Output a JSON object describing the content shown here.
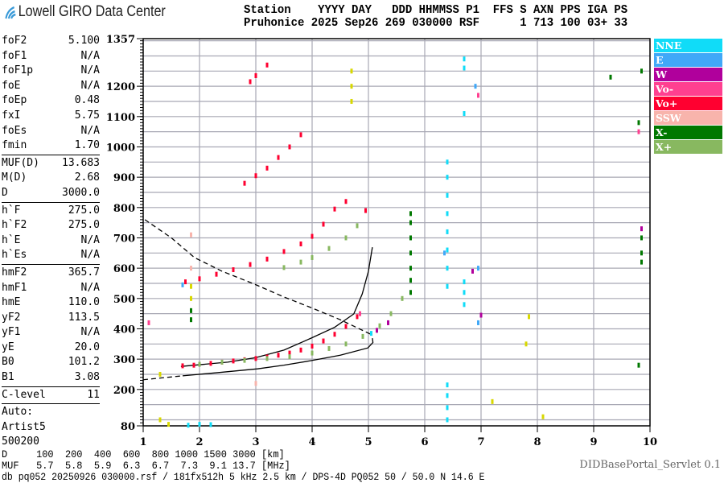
{
  "header": {
    "logo_text": "Lowell GIRO Data Center",
    "line1": "Station    YYYY DAY   DDD HHMMSS P1  FFS S AXN PPS IGA PS",
    "line2": "Pruhonice 2025 Sep26 269 030000 RSF      1 713 100 03+ 33"
  },
  "params": {
    "groups": [
      [
        [
          "foF2",
          "5.100"
        ],
        [
          "foF1",
          "N/A"
        ],
        [
          "foF1p",
          "N/A"
        ],
        [
          "foE",
          "N/A"
        ],
        [
          "foEp",
          "0.48"
        ],
        [
          "fxI",
          "5.75"
        ],
        [
          "foEs",
          "N/A"
        ],
        [
          "fmin",
          "1.70"
        ]
      ],
      [
        [
          "MUF(D)",
          "13.683"
        ],
        [
          "M(D)",
          "2.68"
        ],
        [
          "D",
          "3000.0"
        ]
      ],
      [
        [
          "h`F",
          "275.0"
        ],
        [
          "h`F2",
          "275.0"
        ],
        [
          "h`E",
          "N/A"
        ],
        [
          "h`Es",
          "N/A"
        ]
      ],
      [
        [
          "hmF2",
          "365.7"
        ],
        [
          "hmF1",
          "N/A"
        ],
        [
          "hmE",
          "110.0"
        ],
        [
          "yF2",
          "113.5"
        ],
        [
          "yF1",
          "N/A"
        ],
        [
          "yE",
          "20.0"
        ],
        [
          "B0",
          "101.2"
        ],
        [
          "B1",
          "3.08"
        ]
      ],
      [
        [
          "C-level",
          "11"
        ]
      ]
    ],
    "autoscale": [
      "Auto:",
      "Artist5",
      "500200"
    ]
  },
  "legend": [
    {
      "label": "NNE",
      "color": "#10dcf8"
    },
    {
      "label": "E",
      "color": "#40a8f8"
    },
    {
      "label": "W",
      "color": "#b0009c"
    },
    {
      "label": "Vo-",
      "color": "#ff4090"
    },
    {
      "label": "Vo+",
      "color": "#ff0030"
    },
    {
      "label": "SSW",
      "color": "#f8b4ac"
    },
    {
      "label": "X-",
      "color": "#007800"
    },
    {
      "label": "X+",
      "color": "#88b860"
    }
  ],
  "footer": {
    "d_row": "D     100  200  400  600  800 1000 1500 3000 [km]",
    "muf_row": "MUF   5.7  5.8  5.9  6.3  6.7  7.3  9.1 13.7 [MHz]",
    "info": "db pq052 20250926 030000.rsf / 181fx512h 5 kHz 2.5 km / DPS-4D PQ052 50 / 50.0 N 14.6 E",
    "servlet": "DIDBasePortal_Servlet 0.1"
  },
  "chart_data": {
    "type": "scatter",
    "xlim": [
      1,
      10
    ],
    "ylim": [
      80,
      1357
    ],
    "x_ticks": [
      "1",
      "2",
      "3",
      "4",
      "5",
      "6",
      "7",
      "8",
      "9",
      "10"
    ],
    "y_ticks": [
      "1357",
      "1200",
      "1100",
      "1000",
      "900",
      "800",
      "700",
      "600",
      "500",
      "400",
      "300",
      "200",
      "80"
    ],
    "grid": true,
    "legend_placement": "right",
    "points": [
      {
        "s": "Vo+",
        "pts": [
          [
            1.7,
            278
          ],
          [
            1.9,
            280
          ],
          [
            2.0,
            283
          ],
          [
            2.2,
            286
          ],
          [
            2.4,
            290
          ],
          [
            2.6,
            294
          ],
          [
            2.8,
            298
          ],
          [
            3.0,
            302
          ],
          [
            3.2,
            307
          ],
          [
            3.4,
            313
          ],
          [
            3.6,
            320
          ],
          [
            3.8,
            330
          ],
          [
            4.0,
            343
          ],
          [
            4.2,
            360
          ],
          [
            4.4,
            382
          ],
          [
            4.6,
            408
          ],
          [
            4.8,
            440
          ],
          [
            1.75,
            555
          ],
          [
            2.0,
            565
          ],
          [
            2.3,
            580
          ],
          [
            2.6,
            595
          ],
          [
            2.9,
            612
          ],
          [
            3.2,
            630
          ],
          [
            3.5,
            655
          ],
          [
            3.8,
            680
          ],
          [
            4.0,
            705
          ],
          [
            4.2,
            745
          ],
          [
            4.4,
            795
          ],
          [
            4.6,
            820
          ],
          [
            4.95,
            790
          ],
          [
            2.8,
            880
          ],
          [
            3.0,
            905
          ],
          [
            3.2,
            930
          ],
          [
            3.4,
            965
          ],
          [
            3.6,
            1000
          ],
          [
            3.8,
            1040
          ],
          [
            2.9,
            1215
          ],
          [
            3.0,
            1235
          ],
          [
            3.2,
            1270
          ]
        ]
      },
      {
        "s": "X+",
        "pts": [
          [
            2.0,
            283
          ],
          [
            2.4,
            290
          ],
          [
            2.8,
            296
          ],
          [
            3.2,
            302
          ],
          [
            3.6,
            308
          ],
          [
            4.0,
            320
          ],
          [
            4.3,
            335
          ],
          [
            4.6,
            350
          ],
          [
            4.9,
            375
          ],
          [
            5.2,
            410
          ],
          [
            5.4,
            450
          ],
          [
            5.6,
            500
          ],
          [
            3.5,
            602
          ],
          [
            3.8,
            620
          ],
          [
            4.0,
            635
          ],
          [
            4.3,
            665
          ],
          [
            4.6,
            700
          ],
          [
            4.8,
            740
          ]
        ]
      },
      {
        "s": "X-",
        "pts": [
          [
            5.75,
            520
          ],
          [
            5.75,
            560
          ],
          [
            5.75,
            600
          ],
          [
            5.75,
            650
          ],
          [
            5.75,
            700
          ],
          [
            5.75,
            750
          ],
          [
            5.75,
            780
          ],
          [
            1.85,
            430
          ],
          [
            1.85,
            460
          ],
          [
            9.3,
            1230
          ],
          [
            9.85,
            1250
          ],
          [
            9.85,
            700
          ],
          [
            9.85,
            650
          ],
          [
            9.85,
            620
          ],
          [
            9.8,
            280
          ],
          [
            9.8,
            1080
          ]
        ]
      },
      {
        "s": "NNE",
        "pts": [
          [
            6.4,
            540
          ],
          [
            6.4,
            600
          ],
          [
            6.4,
            660
          ],
          [
            6.4,
            720
          ],
          [
            6.4,
            780
          ],
          [
            6.4,
            840
          ],
          [
            6.4,
            900
          ],
          [
            6.4,
            950
          ],
          [
            6.4,
            100
          ],
          [
            6.4,
            140
          ],
          [
            6.4,
            180
          ],
          [
            6.4,
            215
          ],
          [
            6.7,
            480
          ],
          [
            6.7,
            520
          ],
          [
            6.7,
            555
          ],
          [
            6.7,
            1110
          ],
          [
            6.7,
            1260
          ],
          [
            6.7,
            1290
          ],
          [
            1.8,
            82
          ],
          [
            2.0,
            85
          ],
          [
            2.2,
            84
          ],
          [
            5.05,
            385
          ]
        ]
      },
      {
        "s": "E",
        "pts": [
          [
            6.9,
            1200
          ],
          [
            6.95,
            600
          ],
          [
            6.95,
            420
          ],
          [
            6.35,
            650
          ],
          [
            1.7,
            545
          ]
        ]
      },
      {
        "s": "W",
        "pts": [
          [
            5.15,
            395
          ],
          [
            5.35,
            420
          ],
          [
            6.85,
            590
          ],
          [
            9.85,
            730
          ],
          [
            7.0,
            445
          ]
        ]
      },
      {
        "s": "Vo-",
        "pts": [
          [
            1.1,
            420
          ],
          [
            6.95,
            1170
          ],
          [
            9.8,
            1050
          ],
          [
            4.85,
            450
          ]
        ]
      },
      {
        "s": "SSW",
        "pts": [
          [
            1.85,
            710
          ],
          [
            3.0,
            220
          ],
          [
            1.85,
            600
          ]
        ]
      },
      {
        "s": "yellow",
        "pts": [
          [
            4.7,
            1150
          ],
          [
            4.7,
            1200
          ],
          [
            4.7,
            1250
          ],
          [
            1.85,
            500
          ],
          [
            1.85,
            540
          ],
          [
            1.45,
            85
          ],
          [
            1.3,
            250
          ],
          [
            7.85,
            440
          ],
          [
            7.8,
            350
          ],
          [
            8.1,
            110
          ],
          [
            7.2,
            160
          ],
          [
            1.3,
            100
          ]
        ]
      }
    ],
    "point_colors": {
      "yellow": "#d8d800"
    },
    "curves": [
      {
        "style": "solid",
        "pts": [
          [
            1.67,
            276
          ],
          [
            2.5,
            290
          ],
          [
            3.0,
            305
          ],
          [
            3.5,
            330
          ],
          [
            3.98,
            369
          ],
          [
            4.4,
            405
          ],
          [
            4.74,
            449
          ],
          [
            4.89,
            515
          ],
          [
            5.0,
            590
          ],
          [
            5.07,
            669
          ]
        ]
      },
      {
        "style": "solid",
        "pts": [
          [
            1.7,
            245
          ],
          [
            2.3,
            255
          ],
          [
            3.03,
            268
          ],
          [
            3.5,
            280
          ],
          [
            3.98,
            295
          ],
          [
            4.5,
            313
          ],
          [
            4.99,
            337
          ],
          [
            5.08,
            355
          ],
          [
            5.07,
            369
          ]
        ]
      },
      {
        "style": "dashed",
        "pts": [
          [
            1.0,
            232
          ],
          [
            1.7,
            245
          ]
        ]
      },
      {
        "style": "dashed",
        "pts": [
          [
            1.03,
            760
          ],
          [
            1.5,
            700
          ],
          [
            1.91,
            635
          ],
          [
            2.4,
            590
          ],
          [
            2.98,
            547
          ],
          [
            3.5,
            505
          ],
          [
            3.98,
            470
          ],
          [
            4.5,
            430
          ],
          [
            5.03,
            383
          ]
        ]
      }
    ]
  }
}
